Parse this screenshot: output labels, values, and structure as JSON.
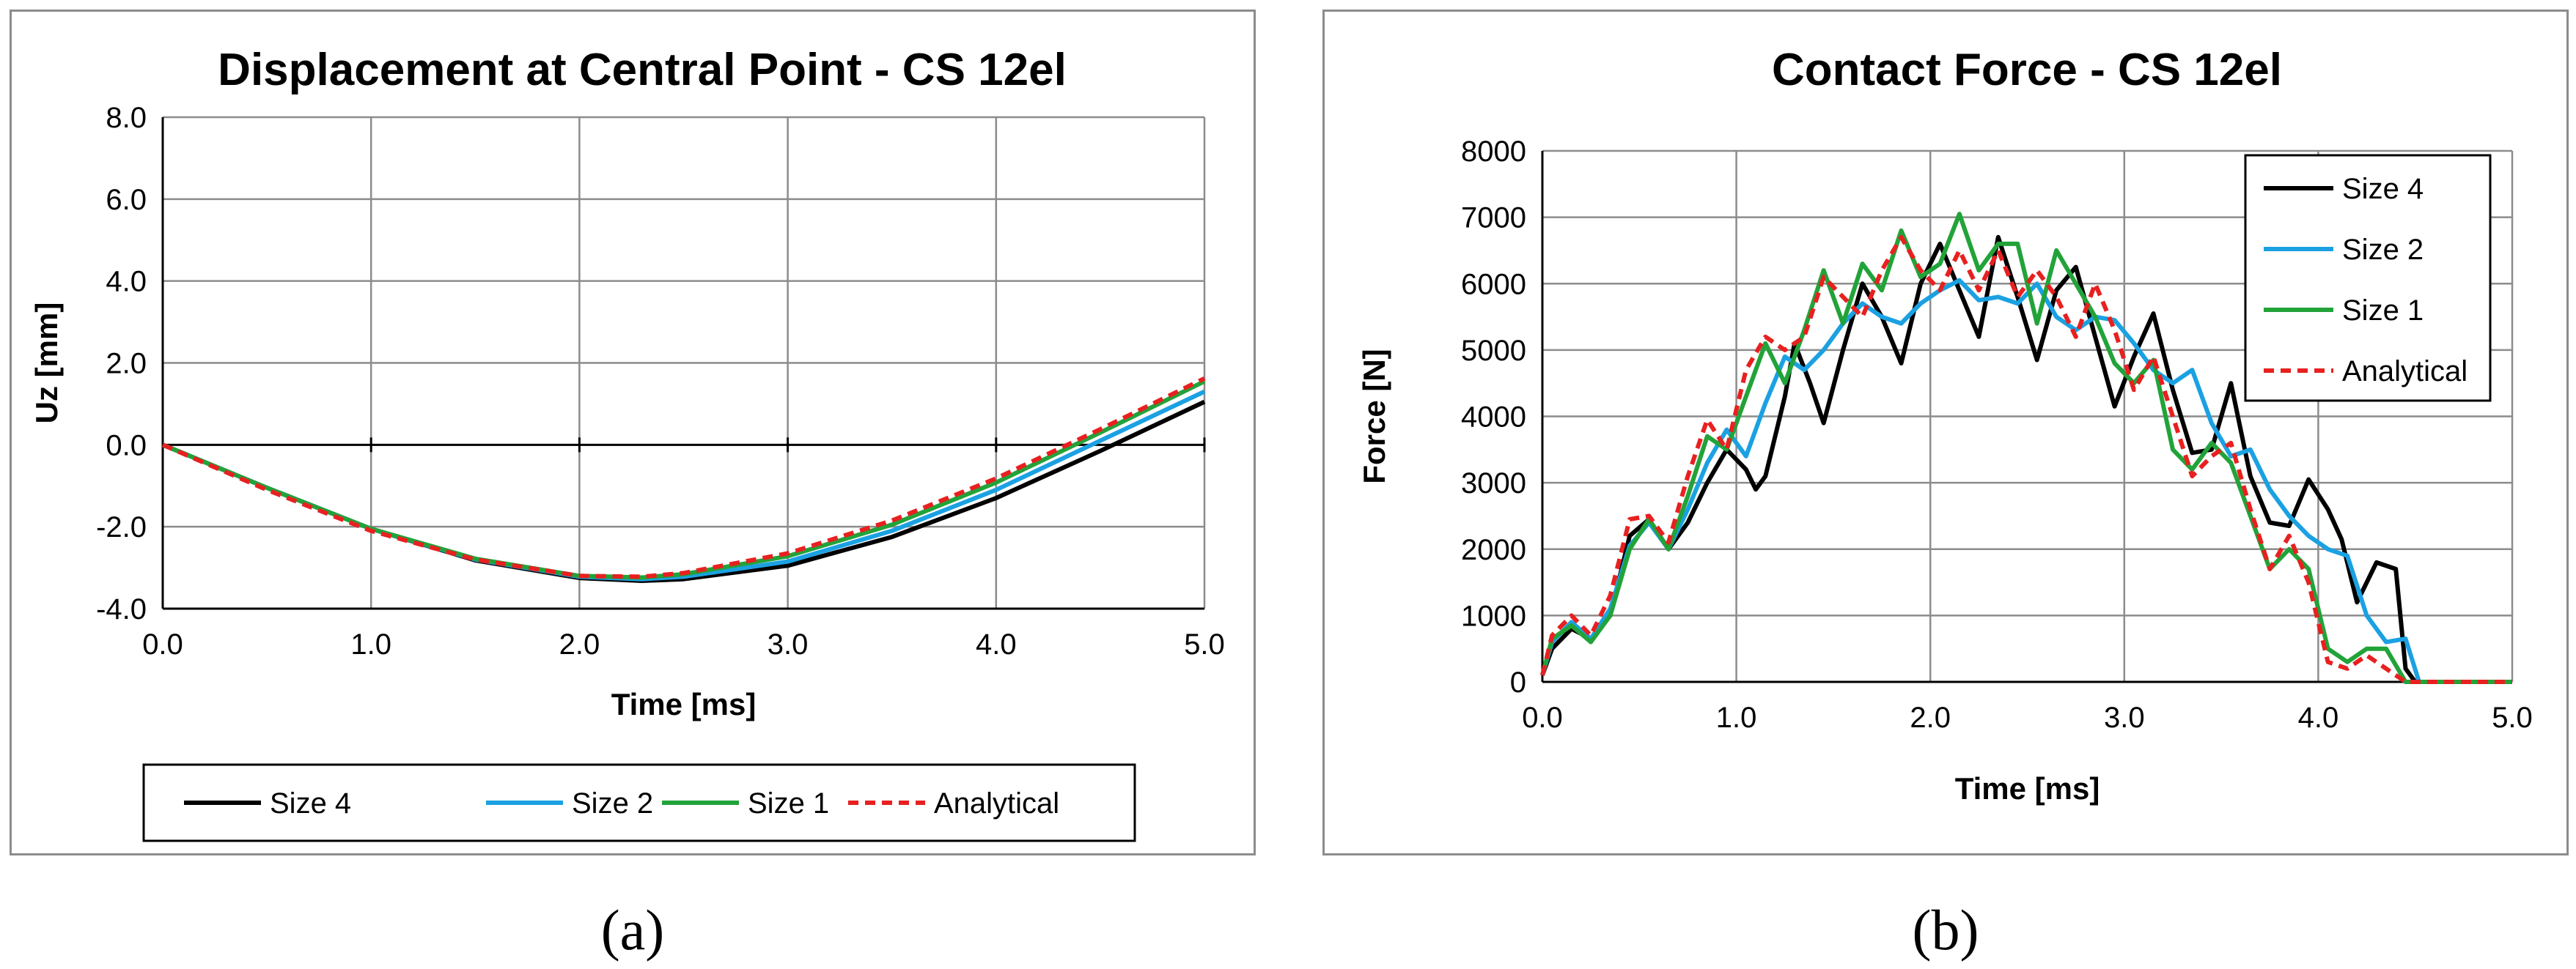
{
  "chart_data": [
    {
      "type": "line",
      "title": "Displacement at Central Point - CS 12el",
      "xlabel": "Time [ms]",
      "ylabel": "Uz  [mm]",
      "xlim": [
        0,
        5
      ],
      "ylim": [
        -4,
        8
      ],
      "xticks": [
        "0.0",
        "1.0",
        "2.0",
        "3.0",
        "4.0",
        "5.0"
      ],
      "yticks": [
        "-4.0",
        "-2.0",
        "0.0",
        "2.0",
        "4.0",
        "6.0",
        "8.0"
      ],
      "grid": true,
      "legend": "bottom",
      "series": [
        {
          "name": "Size 4",
          "color": "#000000",
          "dash": "none",
          "x": [
            0,
            0.5,
            1.0,
            1.5,
            2.0,
            2.3,
            2.5,
            3.0,
            3.5,
            4.0,
            4.5,
            5.0
          ],
          "y": [
            0,
            -1.05,
            -2.05,
            -2.82,
            -3.25,
            -3.32,
            -3.28,
            -2.95,
            -2.25,
            -1.3,
            -0.15,
            1.05
          ]
        },
        {
          "name": "Size 2",
          "color": "#1ba1e2",
          "dash": "none",
          "x": [
            0,
            0.5,
            1.0,
            1.5,
            2.0,
            2.3,
            2.5,
            3.0,
            3.5,
            4.0,
            4.5,
            5.0
          ],
          "y": [
            0,
            -1.05,
            -2.05,
            -2.8,
            -3.22,
            -3.28,
            -3.22,
            -2.85,
            -2.1,
            -1.1,
            0.1,
            1.3
          ]
        },
        {
          "name": "Size 1",
          "color": "#22a339",
          "dash": "none",
          "x": [
            0,
            0.5,
            1.0,
            1.5,
            2.0,
            2.3,
            2.5,
            3.0,
            3.5,
            4.0,
            4.5,
            5.0
          ],
          "y": [
            0,
            -1.05,
            -2.05,
            -2.78,
            -3.2,
            -3.24,
            -3.16,
            -2.72,
            -1.95,
            -0.92,
            0.3,
            1.55
          ]
        },
        {
          "name": "Analytical",
          "color": "#e82020",
          "dash": "dashed",
          "x": [
            0,
            0.5,
            1.0,
            1.5,
            2.0,
            2.3,
            2.5,
            3.0,
            3.5,
            4.0,
            4.5,
            5.0
          ],
          "y": [
            0,
            -1.1,
            -2.1,
            -2.8,
            -3.2,
            -3.22,
            -3.13,
            -2.65,
            -1.85,
            -0.82,
            0.38,
            1.62
          ]
        }
      ]
    },
    {
      "type": "line",
      "title": "Contact Force - CS 12el",
      "xlabel": "Time [ms]",
      "ylabel": "Force  [N]",
      "xlim": [
        0,
        5
      ],
      "ylim": [
        0,
        8000
      ],
      "xticks": [
        "0.0",
        "1.0",
        "2.0",
        "3.0",
        "4.0",
        "5.0"
      ],
      "yticks": [
        "0",
        "1000",
        "2000",
        "3000",
        "4000",
        "5000",
        "6000",
        "7000",
        "8000"
      ],
      "grid": true,
      "legend": "top-right",
      "series": [
        {
          "name": "Size 4",
          "color": "#000000",
          "dash": "none",
          "x": [
            0,
            0.05,
            0.15,
            0.25,
            0.35,
            0.45,
            0.55,
            0.65,
            0.75,
            0.85,
            0.95,
            1.05,
            1.1,
            1.15,
            1.25,
            1.3,
            1.38,
            1.45,
            1.55,
            1.65,
            1.75,
            1.85,
            1.95,
            2.05,
            2.15,
            2.25,
            2.35,
            2.45,
            2.55,
            2.65,
            2.75,
            2.85,
            2.95,
            3.05,
            3.15,
            3.25,
            3.35,
            3.45,
            3.55,
            3.65,
            3.75,
            3.85,
            3.95,
            4.05,
            4.12,
            4.2,
            4.3,
            4.4,
            4.45,
            4.5,
            4.6,
            5.0
          ],
          "y": [
            100,
            500,
            800,
            650,
            1000,
            2200,
            2450,
            2000,
            2400,
            3000,
            3500,
            3200,
            2900,
            3100,
            4300,
            5100,
            4500,
            3900,
            5000,
            6000,
            5500,
            4800,
            6000,
            6600,
            5900,
            5200,
            6700,
            5800,
            4850,
            5900,
            6250,
            5200,
            4150,
            4900,
            5550,
            4400,
            3450,
            3500,
            4500,
            3100,
            2400,
            2350,
            3050,
            2600,
            2150,
            1200,
            1800,
            1700,
            200,
            0,
            0,
            0
          ]
        },
        {
          "name": "Size 2",
          "color": "#1ba1e2",
          "dash": "none",
          "x": [
            0,
            0.05,
            0.15,
            0.25,
            0.35,
            0.45,
            0.55,
            0.65,
            0.75,
            0.85,
            0.95,
            1.05,
            1.15,
            1.25,
            1.35,
            1.45,
            1.55,
            1.65,
            1.75,
            1.85,
            1.95,
            2.05,
            2.15,
            2.25,
            2.35,
            2.45,
            2.55,
            2.65,
            2.75,
            2.85,
            2.95,
            3.05,
            3.15,
            3.25,
            3.35,
            3.45,
            3.55,
            3.65,
            3.75,
            3.85,
            3.95,
            4.05,
            4.15,
            4.25,
            4.35,
            4.45,
            4.52,
            4.6,
            5.0
          ],
          "y": [
            100,
            600,
            900,
            650,
            1100,
            2050,
            2400,
            2000,
            2600,
            3300,
            3800,
            3400,
            4200,
            4900,
            4700,
            5000,
            5400,
            5700,
            5500,
            5400,
            5700,
            5900,
            6050,
            5750,
            5800,
            5700,
            6000,
            5500,
            5300,
            5500,
            5450,
            5100,
            4700,
            4500,
            4700,
            3900,
            3400,
            3500,
            2900,
            2500,
            2200,
            2000,
            1900,
            1000,
            600,
            650,
            0,
            0,
            0
          ]
        },
        {
          "name": "Size 1",
          "color": "#22a339",
          "dash": "none",
          "x": [
            0,
            0.05,
            0.15,
            0.25,
            0.35,
            0.45,
            0.55,
            0.65,
            0.75,
            0.85,
            0.95,
            1.05,
            1.15,
            1.25,
            1.35,
            1.45,
            1.55,
            1.65,
            1.75,
            1.85,
            1.95,
            2.05,
            2.15,
            2.25,
            2.35,
            2.45,
            2.55,
            2.65,
            2.75,
            2.85,
            2.95,
            3.05,
            3.15,
            3.25,
            3.35,
            3.45,
            3.55,
            3.65,
            3.75,
            3.85,
            3.95,
            4.05,
            4.15,
            4.25,
            4.35,
            4.45,
            4.5,
            5.0
          ],
          "y": [
            100,
            650,
            850,
            600,
            1000,
            2000,
            2450,
            2000,
            2800,
            3700,
            3500,
            4300,
            5100,
            4500,
            5300,
            6200,
            5400,
            6300,
            5900,
            6800,
            6100,
            6300,
            7050,
            6200,
            6600,
            6600,
            5400,
            6500,
            6000,
            5500,
            4800,
            4500,
            4850,
            3500,
            3200,
            3600,
            3300,
            2500,
            1700,
            2000,
            1700,
            500,
            300,
            500,
            500,
            0,
            0,
            0
          ]
        },
        {
          "name": "Analytical",
          "color": "#e82020",
          "dash": "dashed",
          "x": [
            0,
            0.05,
            0.15,
            0.25,
            0.35,
            0.45,
            0.55,
            0.65,
            0.75,
            0.85,
            0.95,
            1.05,
            1.15,
            1.25,
            1.35,
            1.45,
            1.55,
            1.65,
            1.75,
            1.85,
            1.95,
            2.05,
            2.15,
            2.25,
            2.35,
            2.45,
            2.55,
            2.65,
            2.75,
            2.85,
            2.95,
            3.05,
            3.15,
            3.25,
            3.35,
            3.45,
            3.55,
            3.65,
            3.75,
            3.85,
            3.95,
            4.05,
            4.15,
            4.25,
            4.35,
            4.45,
            4.5,
            5.0
          ],
          "y": [
            100,
            700,
            1000,
            700,
            1300,
            2450,
            2500,
            2100,
            3100,
            3950,
            3500,
            4700,
            5200,
            5000,
            5200,
            6100,
            5800,
            5500,
            6200,
            6700,
            6200,
            5900,
            6500,
            5900,
            6500,
            5800,
            6200,
            5800,
            5200,
            6000,
            5300,
            4400,
            4900,
            4000,
            3100,
            3400,
            3600,
            2600,
            1700,
            2200,
            1500,
            300,
            200,
            400,
            200,
            0,
            0,
            0
          ]
        }
      ]
    }
  ],
  "captions": {
    "a": "(a)",
    "b": "(b)"
  }
}
